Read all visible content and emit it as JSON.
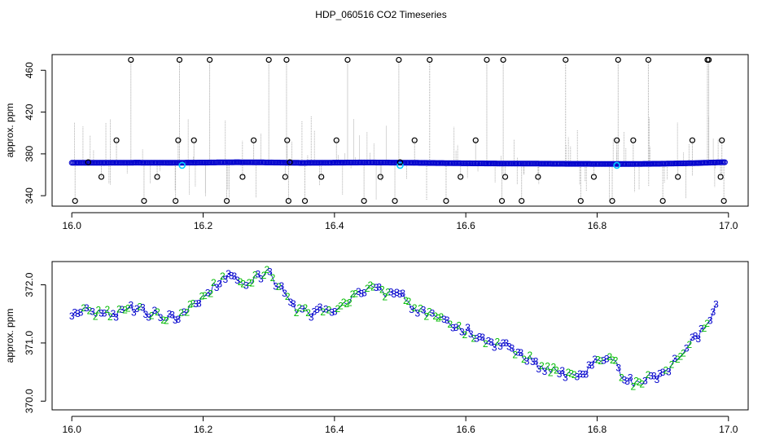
{
  "title": "HDP_060516  CO2 Timeseries",
  "colors": {
    "frame": "#000000",
    "series_points": "#0000cc",
    "cal_points": "#00ccff",
    "spike_lines": "#9a9a9a",
    "label2": "#00bb00",
    "label3": "#0000cc"
  },
  "chart_data": [
    {
      "type": "scatter",
      "title": "HDP_060516  CO2 Timeseries",
      "xlabel": "",
      "ylabel": "approx. ppm",
      "xlim": [
        15.97,
        17.03
      ],
      "ylim": [
        330,
        475
      ],
      "xticks": [
        "16.0",
        "16.2",
        "16.4",
        "16.6",
        "16.8",
        "17.0"
      ],
      "xtick_values": [
        16.0,
        16.2,
        16.4,
        16.6,
        16.8,
        17.0
      ],
      "yticks": [
        "340",
        "380",
        "420",
        "460"
      ],
      "ytick_values": [
        340,
        380,
        420,
        460
      ],
      "grid": false,
      "series": [
        {
          "x": [
            16.0,
            16.05,
            16.1,
            16.15,
            16.2,
            16.25,
            16.3,
            16.35,
            16.4,
            16.45,
            16.5,
            16.55,
            16.6,
            16.65,
            16.7,
            16.75,
            16.8,
            16.85,
            16.9,
            16.95,
            16.99
          ],
          "y": [
            371.5,
            371.5,
            371.6,
            371.5,
            371.7,
            372.0,
            371.8,
            371.4,
            371.6,
            371.8,
            371.6,
            371.3,
            371.0,
            370.8,
            370.7,
            370.5,
            370.4,
            370.3,
            370.6,
            371.2,
            372.0
          ]
        },
        {
          "x": [
            16.168,
            16.5,
            16.83
          ],
          "y": [
            369,
            369,
            369
          ]
        },
        {
          "x": [
            16.005,
            16.025,
            16.045,
            16.068,
            16.09,
            16.11,
            16.13,
            16.158,
            16.162,
            16.164,
            16.186,
            16.21,
            16.236,
            16.26,
            16.277,
            16.3,
            16.325,
            16.327,
            16.328,
            16.33,
            16.332,
            16.355,
            16.38,
            16.403,
            16.42,
            16.445,
            16.47,
            16.492,
            16.498,
            16.5,
            16.522,
            16.545,
            16.57,
            16.592,
            16.615,
            16.632,
            16.655,
            16.657,
            16.66,
            16.685,
            16.71,
            16.752,
            16.775,
            16.795,
            16.823,
            16.83,
            16.832,
            16.855,
            16.878,
            16.9,
            16.923,
            16.945,
            16.968,
            16.97,
            16.988,
            16.99,
            16.993
          ],
          "y": [
            335,
            372,
            358,
            393,
            470,
            335,
            358,
            335,
            393,
            470,
            393,
            470,
            335,
            358,
            393,
            470,
            358,
            470,
            393,
            335,
            372,
            335,
            358,
            393,
            470,
            335,
            358,
            335,
            470,
            372,
            393,
            470,
            335,
            358,
            393,
            470,
            335,
            470,
            358,
            335,
            358,
            470,
            335,
            358,
            335,
            393,
            470,
            393,
            470,
            335,
            358,
            393,
            470,
            470,
            358,
            393,
            335
          ]
        }
      ]
    },
    {
      "type": "scatter",
      "xlabel": "",
      "ylabel": "approx. ppm",
      "xlim": [
        15.97,
        17.03
      ],
      "ylim": [
        369.85,
        372.4
      ],
      "xticks": [
        "16.0",
        "16.2",
        "16.4",
        "16.6",
        "16.8",
        "17.0"
      ],
      "xtick_values": [
        16.0,
        16.2,
        16.4,
        16.6,
        16.8,
        17.0
      ],
      "yticks": [
        "370.0",
        "371.0",
        "372.0"
      ],
      "ytick_values": [
        370.0,
        371.0,
        372.0
      ],
      "grid": false,
      "series": [
        {
          "x": [
            16.0,
            16.02,
            16.04,
            16.06,
            16.08,
            16.1,
            16.12,
            16.14,
            16.16,
            16.18,
            16.2,
            16.22,
            16.24,
            16.26,
            16.28,
            16.3,
            16.32,
            16.34,
            16.36,
            16.38,
            16.4,
            16.42,
            16.44,
            16.46,
            16.48,
            16.5,
            16.52,
            16.54,
            16.56,
            16.58,
            16.6,
            16.62,
            16.64,
            16.66,
            16.68,
            16.7,
            16.72,
            16.74,
            16.76,
            16.78,
            16.8,
            16.82,
            16.84,
            16.86,
            16.88,
            16.9,
            16.92,
            16.94,
            16.96,
            16.98
          ],
          "y": [
            371.5,
            371.55,
            371.5,
            371.5,
            371.55,
            371.6,
            371.5,
            371.45,
            371.45,
            371.6,
            371.8,
            372.0,
            372.2,
            372.0,
            372.1,
            372.2,
            371.9,
            371.6,
            371.5,
            371.55,
            371.6,
            371.7,
            371.9,
            372.0,
            371.8,
            371.85,
            371.6,
            371.5,
            371.4,
            371.3,
            371.2,
            371.1,
            370.95,
            370.95,
            370.8,
            370.7,
            370.55,
            370.5,
            370.45,
            370.5,
            370.7,
            370.8,
            370.35,
            370.3,
            370.4,
            370.45,
            370.7,
            371.0,
            371.2,
            371.6
          ]
        }
      ]
    }
  ]
}
